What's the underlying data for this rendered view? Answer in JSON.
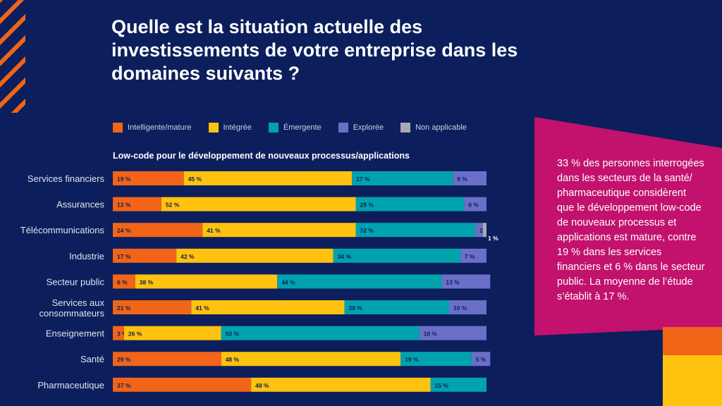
{
  "title": "Quelle est la situation actuelle des investissements de votre entreprise dans les domaines suivants ?",
  "legend": [
    {
      "label": "Intelligente/mature",
      "color": "#f26418"
    },
    {
      "label": "Intégrée",
      "color": "#ffc20e"
    },
    {
      "label": "Émergente",
      "color": "#00a3ad"
    },
    {
      "label": "Explorée",
      "color": "#6a6fc8"
    },
    {
      "label": "Non applicable",
      "color": "#a7a9b4"
    }
  ],
  "callout": "33 % des personnes interrogées dans les secteurs de la santé/ pharmaceutique considèrent que le développement low-code de nouveaux processus et applications est mature, contre 19 % dans les services financiers et 6 % dans le secteur public. La moyenne de l’étude s’établit à 17 %.",
  "chart_data": {
    "type": "bar",
    "orientation": "horizontal",
    "stacked": true,
    "title": "Low-code pour le développement de nouveaux processus/applications",
    "categories": [
      "Services financiers",
      "Assurances",
      "Télécommunications",
      "Industrie",
      "Secteur public",
      "Services aux consommateurs",
      "Enseignement",
      "Santé",
      "Pharmaceutique"
    ],
    "series": [
      {
        "name": "Intelligente/mature",
        "color": "#f26418",
        "values": [
          19,
          13,
          24,
          17,
          6,
          21,
          3,
          29,
          37
        ]
      },
      {
        "name": "Intégrée",
        "color": "#ffc20e",
        "values": [
          45,
          52,
          41,
          42,
          38,
          41,
          26,
          48,
          48
        ]
      },
      {
        "name": "Émergente",
        "color": "#00a3ad",
        "values": [
          27,
          29,
          32,
          34,
          44,
          28,
          53,
          19,
          15
        ]
      },
      {
        "name": "Explorée",
        "color": "#6a6fc8",
        "values": [
          9,
          6,
          2,
          7,
          13,
          10,
          18,
          5,
          0
        ]
      },
      {
        "name": "Non applicable",
        "color": "#a7a9b4",
        "values": [
          0,
          0,
          1,
          0,
          0,
          0,
          0,
          0,
          0
        ]
      }
    ],
    "value_suffix": " %",
    "xlim": [
      0,
      100
    ],
    "legend_position": "top"
  }
}
